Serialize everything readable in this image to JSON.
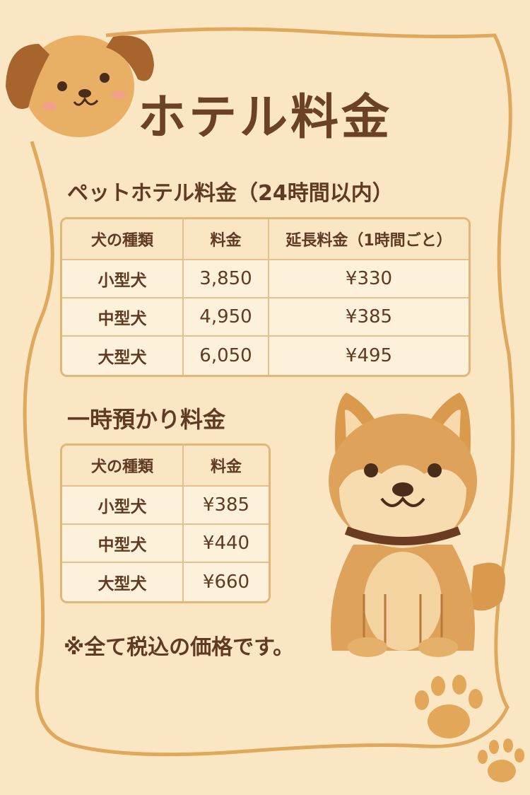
{
  "title": "ホテル料金",
  "hotel": {
    "heading": "ペットホテル料金（24時間以内）",
    "headers": [
      "犬の種類",
      "料金",
      "延長料金（1時間ごと）"
    ],
    "rows": [
      [
        "小型犬",
        "3,850",
        "¥330"
      ],
      [
        "中型犬",
        "4,950",
        "¥385"
      ],
      [
        "大型犬",
        "6,050",
        "¥495"
      ]
    ]
  },
  "daycare": {
    "heading": "一時預かり料金",
    "headers": [
      "犬の種類",
      "料金"
    ],
    "rows": [
      [
        "小型犬",
        "¥385"
      ],
      [
        "中型犬",
        "¥440"
      ],
      [
        "大型犬",
        "¥660"
      ]
    ]
  },
  "note": "※全て税込の価格です。",
  "colors": {
    "background": "#fbe6c4",
    "border": "#e0a85a",
    "text": "#5e3b22"
  }
}
